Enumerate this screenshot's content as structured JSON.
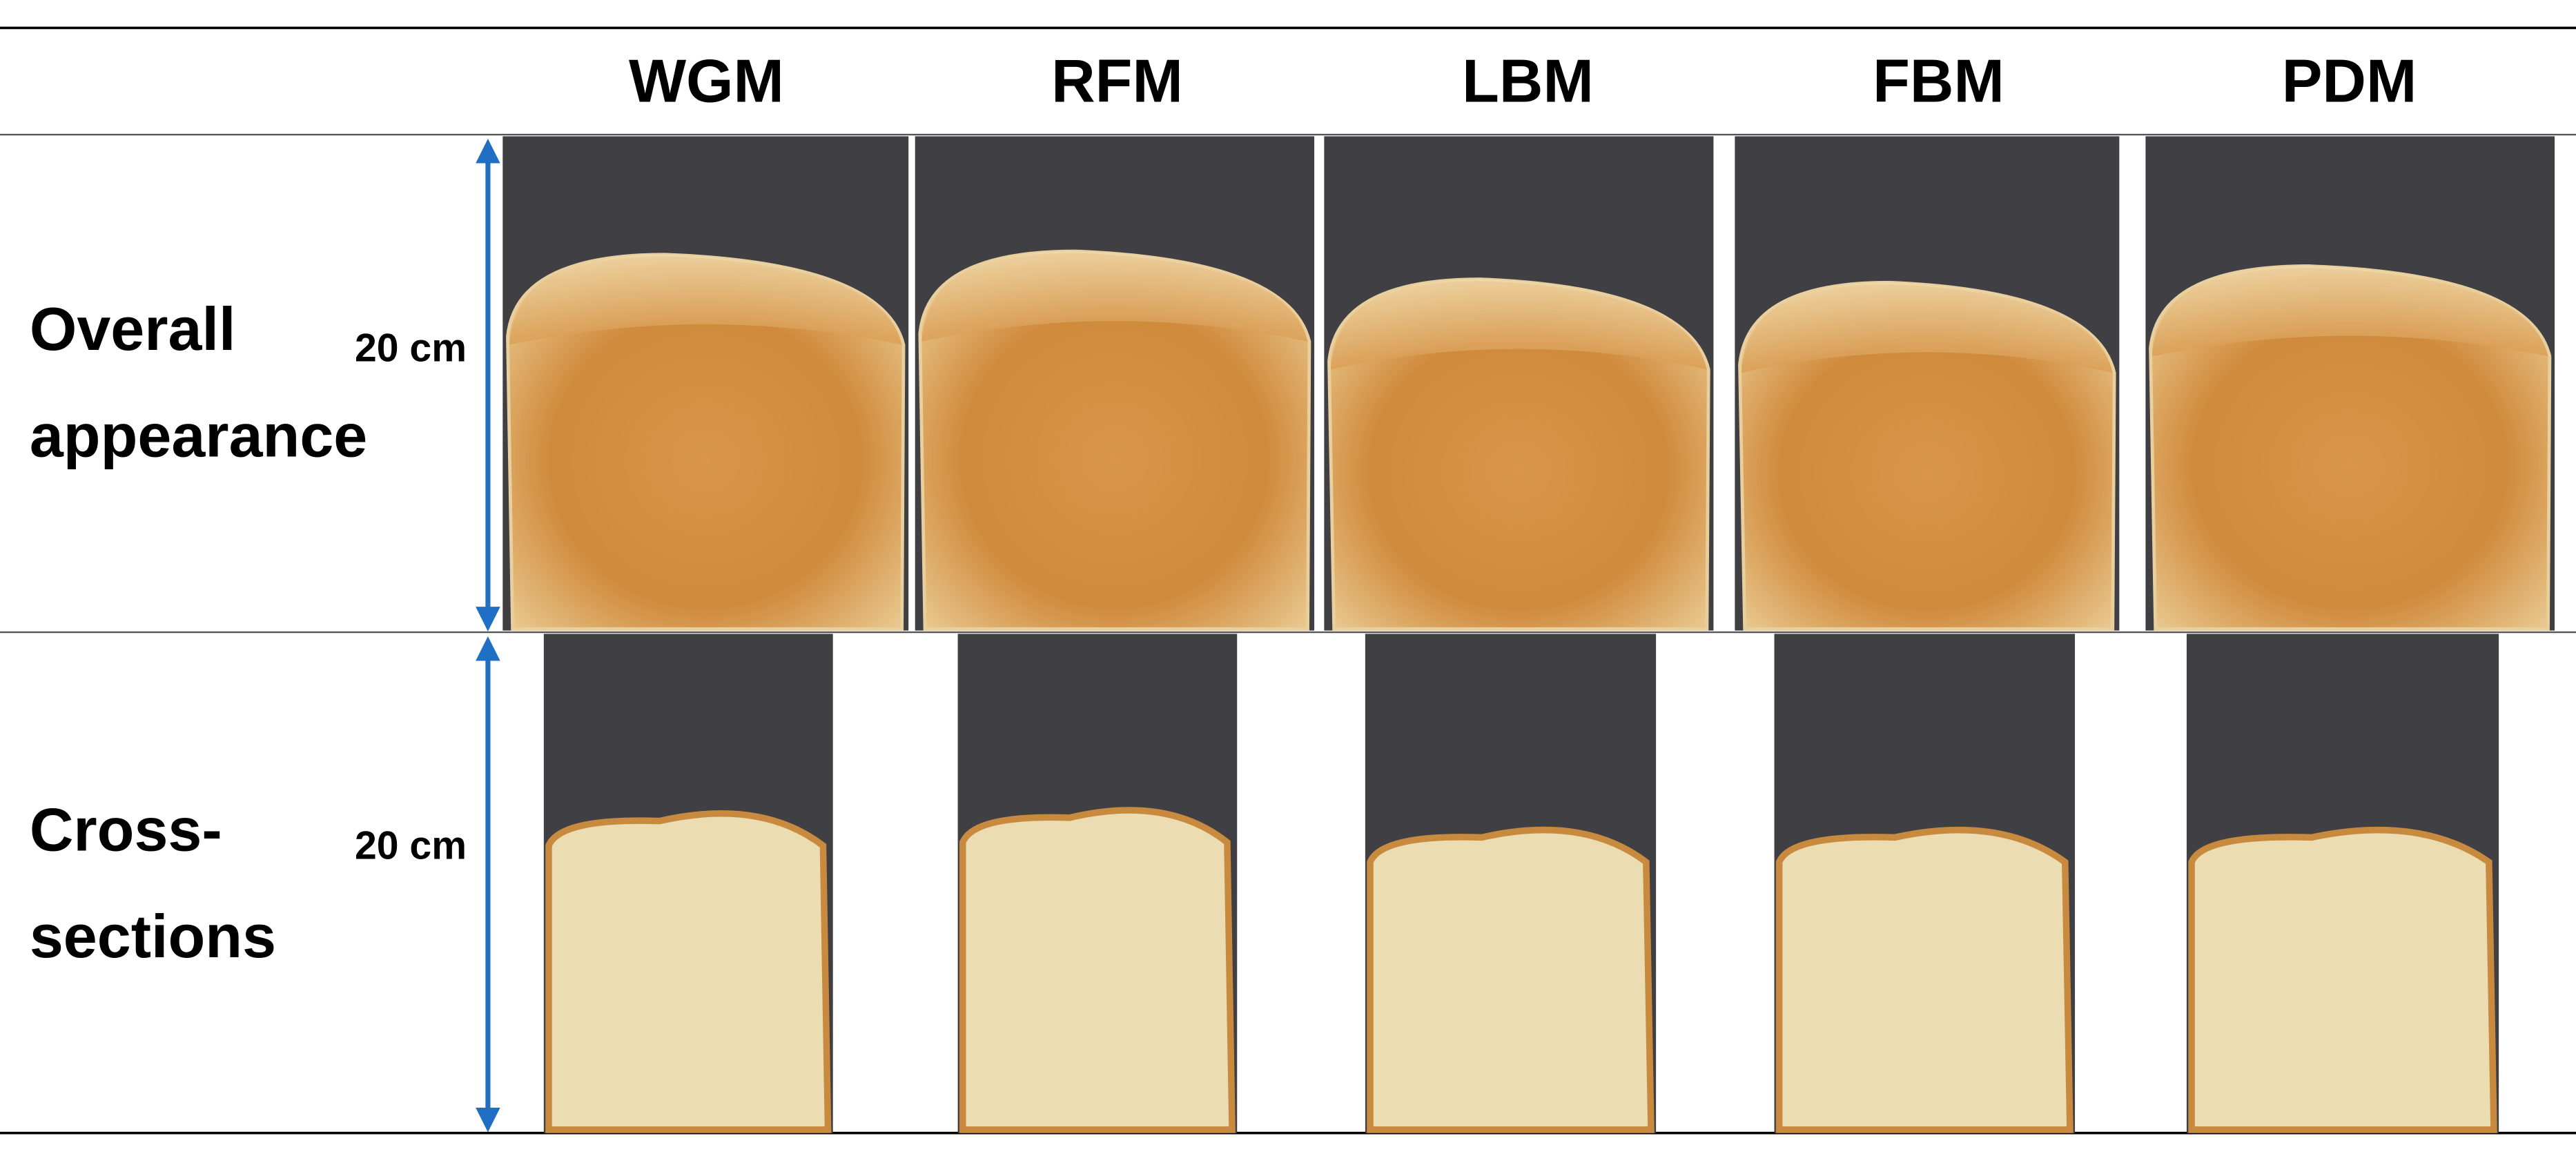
{
  "header": {
    "columns": [
      "WGM",
      "RFM",
      "LBM",
      "FBM",
      "PDM"
    ]
  },
  "rows": [
    {
      "label": [
        "Overall",
        "appearance"
      ],
      "scale": "20 cm"
    },
    {
      "label": [
        "Cross-",
        "sections"
      ],
      "scale": "20 cm"
    }
  ]
}
